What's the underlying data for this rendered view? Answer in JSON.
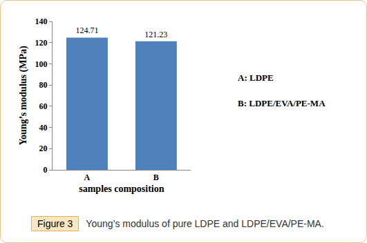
{
  "chart_data": {
    "type": "bar",
    "categories": [
      "A",
      "B"
    ],
    "values": [
      124.71,
      121.23
    ],
    "color": "#4f81bd",
    "xlabel": "samples composition",
    "ylabel": "Young’s modulus (MPa)",
    "ylim": [
      0,
      140
    ],
    "yticks": [
      0,
      20,
      40,
      60,
      80,
      100,
      120,
      140
    ],
    "grid": false,
    "data_labels": true,
    "annotations": [
      "A: LDPE",
      "B: LDPE/EVA/PE-MA"
    ]
  },
  "caption": {
    "label": "Figure 3",
    "text": "Young’s modulus of pure LDPE and LDPE/EVA/PE-MA."
  }
}
